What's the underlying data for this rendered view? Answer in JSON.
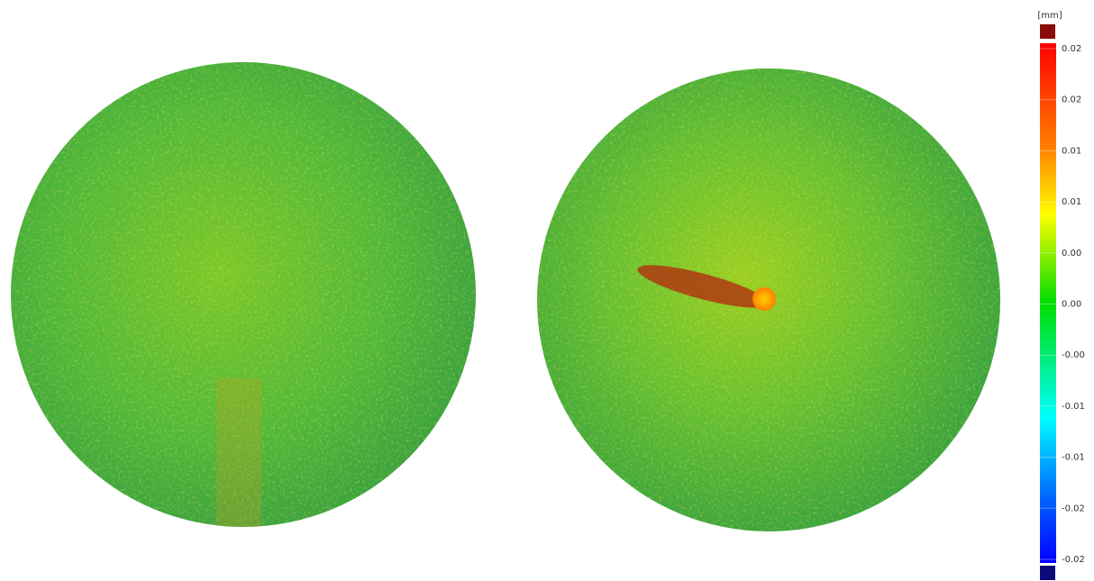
{
  "colorbar": {
    "unit": "[mm]",
    "labels": [
      "0.02",
      "0.02",
      "0.01",
      "0.01",
      "0.00",
      "0.00",
      "-0.00",
      "-0.01",
      "-0.01",
      "-0.02",
      "-0.02"
    ]
  }
}
